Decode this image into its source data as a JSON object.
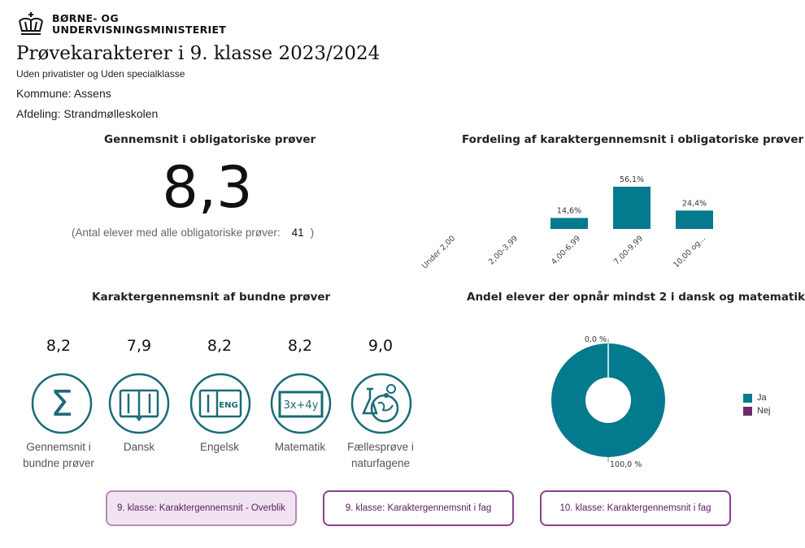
{
  "header": {
    "logo_line1": "BØRNE- OG",
    "logo_line2": "UNDERVISNINGSMINISTERIET",
    "title": "Prøvekarakterer i 9. klasse 2023/2024",
    "subtitle": "Uden privatister og Uden specialklasse",
    "kommune": "Kommune: Assens",
    "afdeling": "Afdeling: Strandmølleskolen"
  },
  "average": {
    "title": "Gennemsnit i obligatoriske prøver",
    "value": "8,3",
    "count_prefix": "(Antal elever med alle obligatoriske prøver:",
    "count_value": "41",
    "count_suffix": ")"
  },
  "colors": {
    "teal": "#037a8d",
    "purple": "#6b2a6e",
    "button_border": "#8c3f8f"
  },
  "distribution": {
    "title": "Fordeling af karaktergennemsnit i obligatoriske prøver",
    "chart_data": {
      "type": "bar",
      "categories": [
        "Under 2,00",
        "2,00-3,99",
        "4,00-6,99",
        "7,00-9,99",
        "10,00 og..."
      ],
      "values": [
        0,
        0,
        14.6,
        56.1,
        24.4
      ],
      "labels": [
        "",
        "",
        "14,6%",
        "56,1%",
        "24,4%"
      ],
      "ylim": [
        0,
        56.1
      ],
      "unit": "%"
    }
  },
  "bound_exams": {
    "title": "Karaktergennemsnit af bundne prøver",
    "subjects": [
      {
        "value": "8,2",
        "label_line1": "Gennemsnit i",
        "label_line2": "bundne prøver",
        "icon": "sigma-icon"
      },
      {
        "value": "7,9",
        "label_line1": "Dansk",
        "label_line2": "",
        "icon": "book-icon"
      },
      {
        "value": "8,2",
        "label_line1": "Engelsk",
        "label_line2": "",
        "icon": "english-book-icon"
      },
      {
        "value": "8,2",
        "label_line1": "Matematik",
        "label_line2": "",
        "icon": "math-board-icon"
      },
      {
        "value": "9,0",
        "label_line1": "Fællesprøve i",
        "label_line2": "naturfagene",
        "icon": "science-flask-icon"
      }
    ]
  },
  "share": {
    "title": "Andel elever der opnår mindst 2 i dansk og matematik",
    "chart_data": {
      "type": "pie",
      "categories": [
        "Ja",
        "Nej"
      ],
      "values": [
        100.0,
        0.0
      ],
      "labels": [
        "100,0 %",
        "0,0 %"
      ]
    },
    "legend": [
      "Ja",
      "Nej"
    ]
  },
  "nav": {
    "buttons": [
      "9. klasse: Karaktergennemsnit - Overblik",
      "9. klasse: Karaktergennemsnit i fag",
      "10. klasse: Karaktergennemsnit i fag"
    ]
  }
}
